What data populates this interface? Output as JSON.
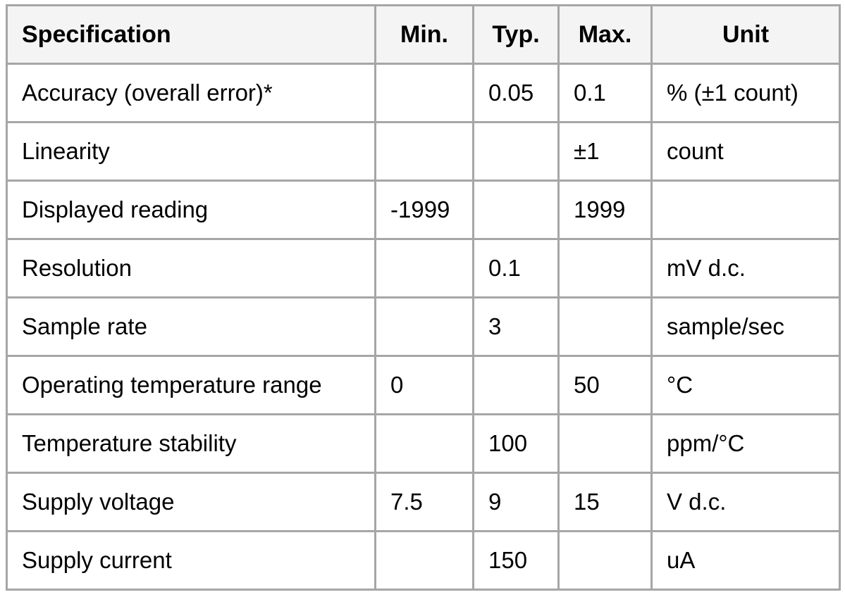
{
  "table": {
    "colors": {
      "border": "#a6a6a6",
      "header_background": "#f4f4f4",
      "cell_background": "#ffffff",
      "text": "#000000"
    },
    "columns": [
      {
        "key": "spec",
        "label": "Specification"
      },
      {
        "key": "min",
        "label": "Min."
      },
      {
        "key": "typ",
        "label": "Typ."
      },
      {
        "key": "max",
        "label": "Max."
      },
      {
        "key": "unit",
        "label": "Unit"
      }
    ],
    "rows": [
      {
        "spec": "Accuracy (overall error)*",
        "min": "",
        "typ": "0.05",
        "max": "0.1",
        "unit": "% (±1 count)"
      },
      {
        "spec": "Linearity",
        "min": "",
        "typ": "",
        "max": "±1",
        "unit": "count"
      },
      {
        "spec": "Displayed reading",
        "min": "-1999",
        "typ": "",
        "max": "1999",
        "unit": ""
      },
      {
        "spec": "Resolution",
        "min": "",
        "typ": "0.1",
        "max": "",
        "unit": "mV d.c."
      },
      {
        "spec": "Sample rate",
        "min": "",
        "typ": "3",
        "max": "",
        "unit": "sample/sec"
      },
      {
        "spec": "Operating temperature range",
        "min": "0",
        "typ": "",
        "max": "50",
        "unit": "°C"
      },
      {
        "spec": "Temperature stability",
        "min": "",
        "typ": "100",
        "max": "",
        "unit": "ppm/°C"
      },
      {
        "spec": "Supply voltage",
        "min": "7.5",
        "typ": "9",
        "max": "15",
        "unit": "V d.c."
      },
      {
        "spec": "Supply current",
        "min": "",
        "typ": "150",
        "max": "",
        "unit": "uA"
      }
    ]
  }
}
